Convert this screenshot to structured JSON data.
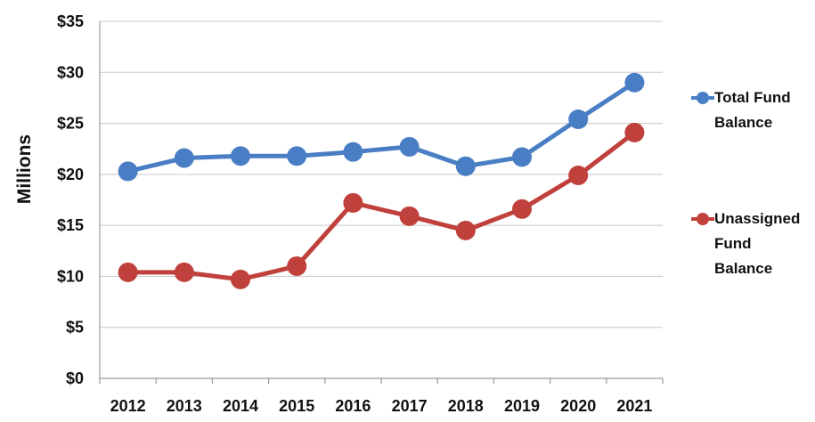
{
  "chart_data": {
    "type": "line",
    "title": "",
    "xlabel": "",
    "ylabel": "Millions",
    "categories": [
      "2012",
      "2013",
      "2014",
      "2015",
      "2016",
      "2017",
      "2018",
      "2019",
      "2020",
      "2021"
    ],
    "y_ticks": [
      "$0",
      "$5",
      "$10",
      "$15",
      "$20",
      "$25",
      "$30",
      "$35"
    ],
    "ylim": [
      0,
      35
    ],
    "grid": "horizontal",
    "legend_position": "right",
    "series": [
      {
        "name": "Total Fund Balance",
        "legend_lines": [
          "Total Fund",
          "Balance"
        ],
        "color": "#4a7ec4",
        "values": [
          20.3,
          21.6,
          21.8,
          21.8,
          22.2,
          22.7,
          20.8,
          21.7,
          25.4,
          29.0
        ]
      },
      {
        "name": "Unassigned Fund Balance",
        "legend_lines": [
          "Unassigned",
          "Fund",
          "Balance"
        ],
        "color": "#c0403c",
        "values": [
          10.4,
          10.4,
          9.7,
          11.0,
          17.2,
          15.9,
          14.5,
          16.6,
          19.9,
          24.1
        ]
      }
    ]
  }
}
